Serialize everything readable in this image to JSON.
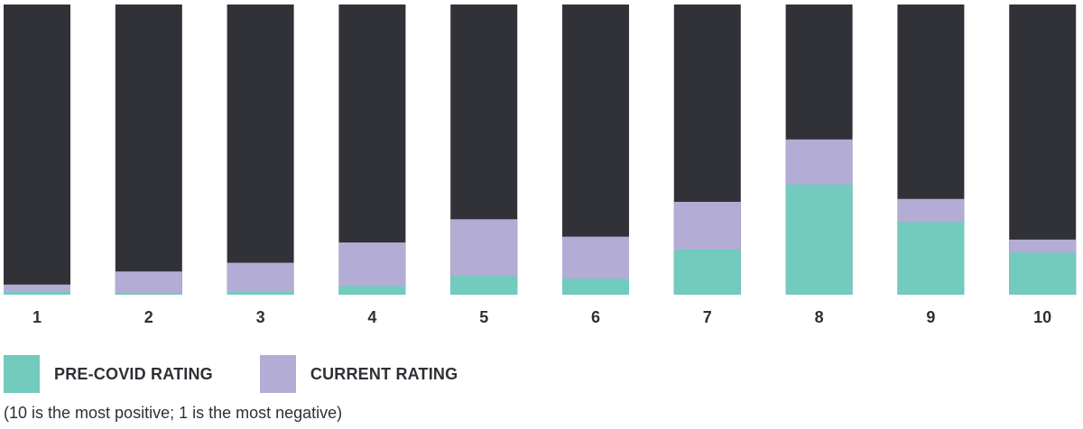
{
  "colors": {
    "track": "#313238",
    "current": "#b3add6",
    "precovid": "#72cbbd",
    "text": "#2f3035"
  },
  "legend": {
    "items": [
      {
        "key": "precovid",
        "label": "PRE-COVID RATING",
        "color": "#72cbbd"
      },
      {
        "key": "current",
        "label": "CURRENT RATING",
        "color": "#b3add6"
      }
    ]
  },
  "footnote": "(10 is the most positive; 1 is the most negative)",
  "chart_data": {
    "type": "bar",
    "stacked": "overlapping",
    "categories": [
      "1",
      "2",
      "3",
      "4",
      "5",
      "6",
      "7",
      "8",
      "9",
      "10"
    ],
    "ylim": [
      0,
      100
    ],
    "series": [
      {
        "name": "PRE-COVID RATING",
        "key": "precovid",
        "values": [
          1,
          0.6,
          1,
          3,
          6.5,
          5.5,
          15.5,
          38,
          25,
          14.5
        ]
      },
      {
        "name": "CURRENT RATING",
        "key": "current",
        "values": [
          3.5,
          8,
          11,
          18,
          26,
          20,
          32,
          53.5,
          33,
          19
        ]
      }
    ],
    "title": "",
    "xlabel": "",
    "ylabel": "",
    "grid": false,
    "legend_position": "bottom-left"
  }
}
